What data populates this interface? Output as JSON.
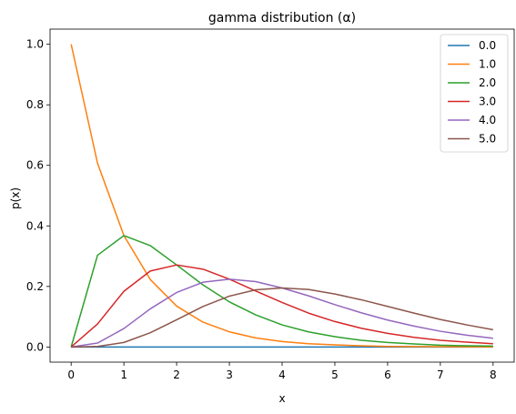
{
  "chart_data": {
    "type": "line",
    "title": "gamma distribution (α)",
    "xlabel": "x",
    "ylabel": "p(x)",
    "xlim": [
      -0.4,
      8.4
    ],
    "ylim": [
      -0.05,
      1.05
    ],
    "xticks": [
      0,
      1,
      2,
      3,
      4,
      5,
      6,
      7,
      8
    ],
    "yticks": [
      0.0,
      0.2,
      0.4,
      0.6,
      0.8,
      1.0
    ],
    "xtick_labels": [
      "0",
      "1",
      "2",
      "3",
      "4",
      "5",
      "6",
      "7",
      "8"
    ],
    "ytick_labels": [
      "0.0",
      "0.2",
      "0.4",
      "0.6",
      "0.8",
      "1.0"
    ],
    "grid": false,
    "legend_position": "top-right",
    "x": [
      0.0,
      0.5,
      1.0,
      1.5,
      2.0,
      2.5,
      3.0,
      3.5,
      4.0,
      4.5,
      5.0,
      5.5,
      6.0,
      6.5,
      7.0,
      7.5,
      8.0
    ],
    "series": [
      {
        "name": "0.0",
        "color": "#1f77b4",
        "values": [
          0.0,
          0.0,
          0.0,
          0.0,
          0.0,
          0.0,
          0.0,
          0.0,
          0.0,
          0.0,
          0.0,
          0.0,
          0.0,
          0.0,
          0.0,
          0.0,
          0.0
        ]
      },
      {
        "name": "1.0",
        "color": "#ff7f0e",
        "values": [
          1.0,
          0.607,
          0.368,
          0.223,
          0.135,
          0.082,
          0.05,
          0.03,
          0.018,
          0.011,
          0.007,
          0.004,
          0.002,
          0.0015,
          0.001,
          0.0006,
          0.0003
        ]
      },
      {
        "name": "2.0",
        "color": "#2ca02c",
        "values": [
          0.0,
          0.303,
          0.368,
          0.335,
          0.271,
          0.205,
          0.149,
          0.106,
          0.073,
          0.05,
          0.034,
          0.022,
          0.015,
          0.01,
          0.006,
          0.004,
          0.003
        ]
      },
      {
        "name": "3.0",
        "color": "#d62728",
        "values": [
          0.0,
          0.076,
          0.184,
          0.251,
          0.271,
          0.257,
          0.224,
          0.185,
          0.147,
          0.112,
          0.084,
          0.062,
          0.045,
          0.032,
          0.022,
          0.016,
          0.011
        ]
      },
      {
        "name": "4.0",
        "color": "#9467bd",
        "values": [
          0.0,
          0.013,
          0.061,
          0.126,
          0.18,
          0.214,
          0.224,
          0.216,
          0.195,
          0.169,
          0.14,
          0.113,
          0.089,
          0.069,
          0.052,
          0.039,
          0.029
        ]
      },
      {
        "name": "5.0",
        "color": "#8c564b",
        "values": [
          0.0,
          0.002,
          0.015,
          0.047,
          0.09,
          0.134,
          0.168,
          0.189,
          0.195,
          0.19,
          0.175,
          0.156,
          0.134,
          0.112,
          0.091,
          0.073,
          0.057
        ]
      }
    ]
  }
}
